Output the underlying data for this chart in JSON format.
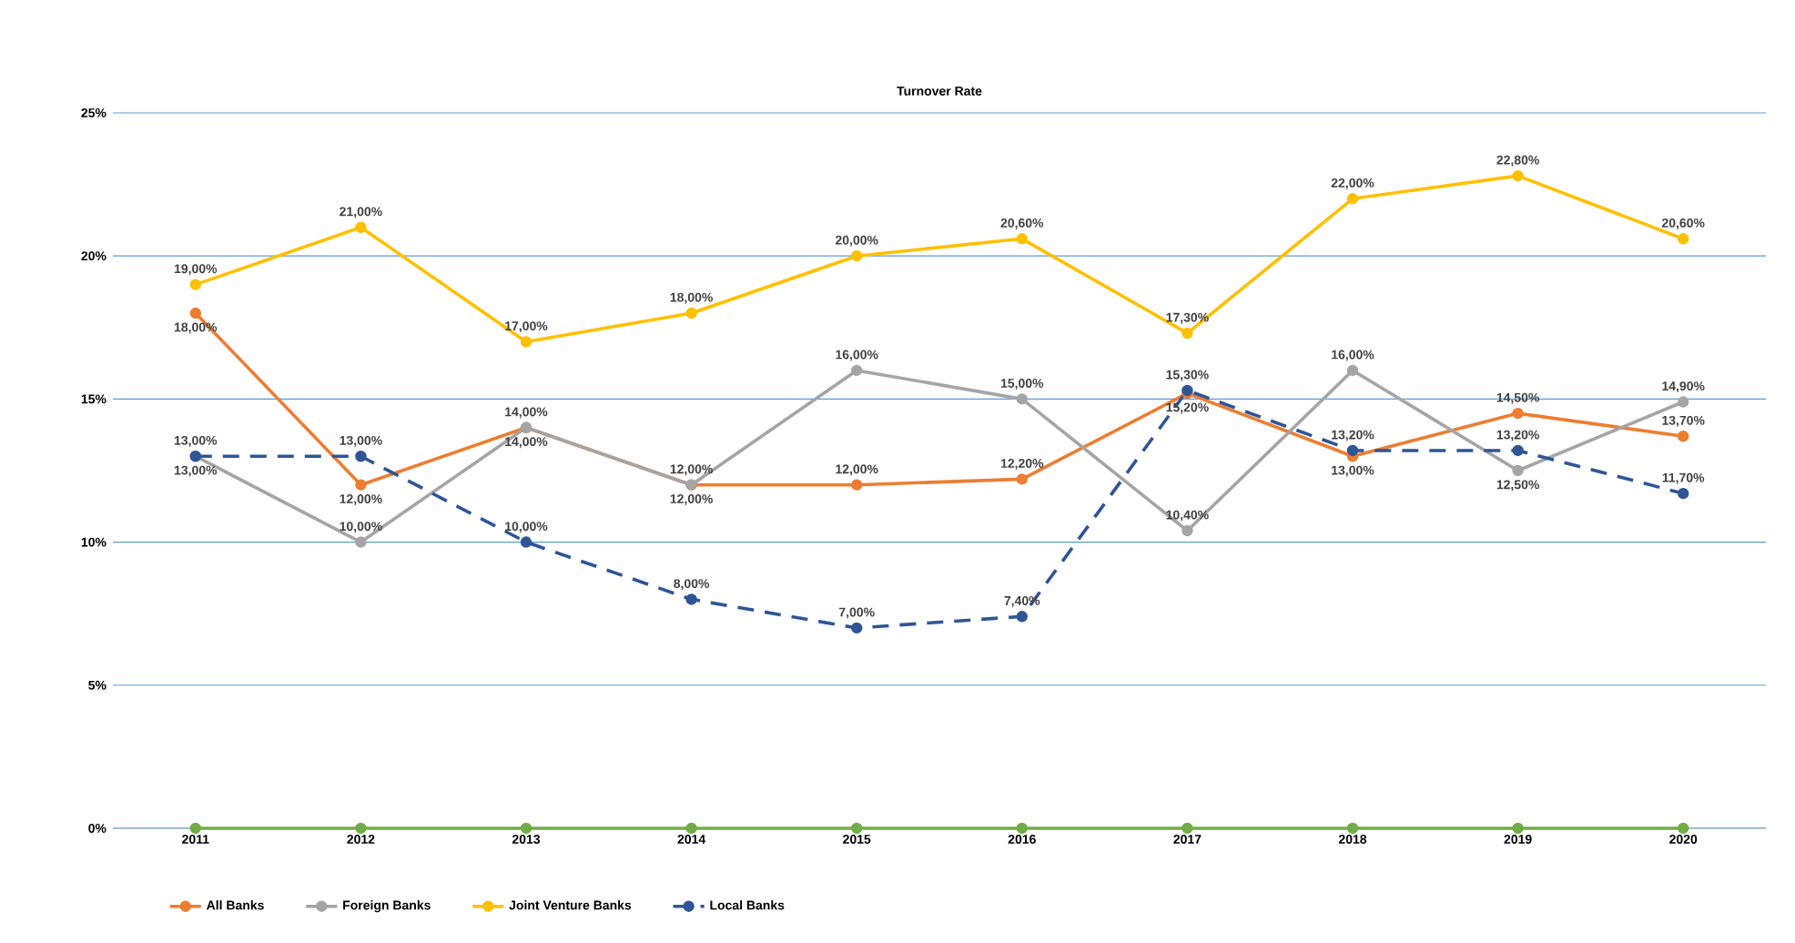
{
  "chart_data": {
    "type": "line",
    "title": "Turnover Rate",
    "categories": [
      "2011",
      "2012",
      "2013",
      "2014",
      "2015",
      "2016",
      "2017",
      "2018",
      "2019",
      "2020"
    ],
    "series": [
      {
        "name": "All Banks",
        "color": "#ed7d31",
        "values": [
          18,
          12,
          14,
          12,
          12,
          12.2,
          15.2,
          13,
          14.5,
          13.7
        ],
        "value_labels": [
          "18,00%",
          "12,00%",
          "14,00%",
          "12,00%",
          "12,00%",
          "12,20%",
          "15,20%",
          "13,00%",
          "14,50%",
          "13,70%"
        ]
      },
      {
        "name": "Foreign Banks",
        "color": "#a5a5a5",
        "values": [
          13,
          10,
          14,
          12,
          16,
          15,
          10.4,
          16,
          12.5,
          14.9
        ],
        "value_labels": [
          "13,00%",
          "10,00%",
          "14,00%",
          "12,00%",
          "16,00%",
          "15,00%",
          "10,40%",
          "16,00%",
          "12,50%",
          "14,90%"
        ]
      },
      {
        "name": "Joint Venture Banks",
        "color": "#ffc000",
        "values": [
          19,
          21,
          17,
          18,
          20,
          20.6,
          17.3,
          22,
          22.8,
          20.6
        ],
        "value_labels": [
          "19,00%",
          "21,00%",
          "17,00%",
          "18,00%",
          "20,00%",
          "20,60%",
          "17,30%",
          "22,00%",
          "22,80%",
          "20,60%"
        ]
      },
      {
        "name": "Local Banks",
        "color": "#2f5597",
        "line_style": "dashed",
        "values": [
          13,
          13,
          10,
          8,
          7,
          7.4,
          15.3,
          13.2,
          13.2,
          11.7
        ],
        "value_labels": [
          "13,00%",
          "13,00%",
          "10,00%",
          "8,00%",
          "7,00%",
          "7,40%",
          "15,30%",
          "13,20%",
          "13,20%",
          "11,70%"
        ]
      },
      {
        "color": "#70ad47",
        "values": [
          0,
          0,
          0,
          0,
          0,
          0,
          0,
          0,
          0,
          0
        ]
      }
    ],
    "ylim": [
      0,
      25
    ],
    "yticks": [
      {
        "value": 0,
        "label": "0%"
      },
      {
        "value": 5,
        "label": "5%"
      },
      {
        "value": 10,
        "label": "10%"
      },
      {
        "value": 15,
        "label": "15%"
      },
      {
        "value": 20,
        "label": "20%"
      },
      {
        "value": 25,
        "label": "25%"
      }
    ],
    "grid": "y",
    "legend": "bottom",
    "marker": "circle"
  }
}
